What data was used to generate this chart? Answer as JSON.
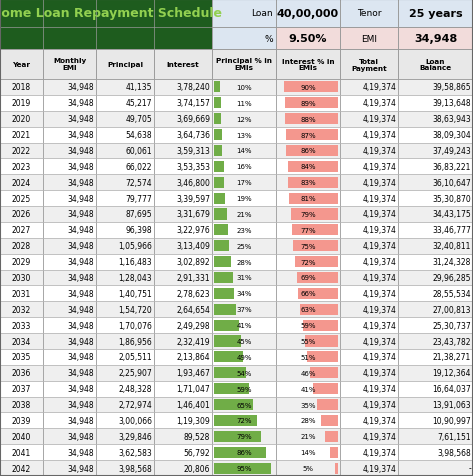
{
  "title": "Home Loan Repayment Schedule",
  "loan": "40,00,000",
  "tenor": "25 years",
  "rate": "9.50%",
  "emi_val": "34,948",
  "headers": [
    "Year",
    "Monthly\nEMI",
    "Principal",
    "Interest",
    "Principal % in\nEMIs",
    "Interest % in\nEMIs",
    "Total\nPayment",
    "Loan\nBalance"
  ],
  "rows": [
    [
      "2018",
      "34,948",
      "41,135",
      "3,78,240",
      10,
      90,
      "4,19,374",
      "39,58,865"
    ],
    [
      "2019",
      "34,948",
      "45,217",
      "3,74,157",
      11,
      89,
      "4,19,374",
      "39,13,648"
    ],
    [
      "2020",
      "34,948",
      "49,705",
      "3,69,669",
      12,
      88,
      "4,19,374",
      "38,63,943"
    ],
    [
      "2021",
      "34,948",
      "54,638",
      "3,64,736",
      13,
      87,
      "4,19,374",
      "38,09,304"
    ],
    [
      "2022",
      "34,948",
      "60,061",
      "3,59,313",
      14,
      86,
      "4,19,374",
      "37,49,243"
    ],
    [
      "2023",
      "34,948",
      "66,022",
      "3,53,353",
      16,
      84,
      "4,19,374",
      "36,83,221"
    ],
    [
      "2024",
      "34,948",
      "72,574",
      "3,46,800",
      17,
      83,
      "4,19,374",
      "36,10,647"
    ],
    [
      "2025",
      "34,948",
      "79,777",
      "3,39,597",
      19,
      81,
      "4,19,374",
      "35,30,870"
    ],
    [
      "2026",
      "34,948",
      "87,695",
      "3,31,679",
      21,
      79,
      "4,19,374",
      "34,43,175"
    ],
    [
      "2027",
      "34,948",
      "96,398",
      "3,22,976",
      23,
      77,
      "4,19,374",
      "33,46,777"
    ],
    [
      "2028",
      "34,948",
      "1,05,966",
      "3,13,409",
      25,
      75,
      "4,19,374",
      "32,40,811"
    ],
    [
      "2029",
      "34,948",
      "1,16,483",
      "3,02,892",
      28,
      72,
      "4,19,374",
      "31,24,328"
    ],
    [
      "2030",
      "34,948",
      "1,28,043",
      "2,91,331",
      31,
      69,
      "4,19,374",
      "29,96,285"
    ],
    [
      "2031",
      "34,948",
      "1,40,751",
      "2,78,623",
      34,
      66,
      "4,19,374",
      "28,55,534"
    ],
    [
      "2032",
      "34,948",
      "1,54,720",
      "2,64,654",
      37,
      63,
      "4,19,374",
      "27,00,813"
    ],
    [
      "2033",
      "34,948",
      "1,70,076",
      "2,49,298",
      41,
      59,
      "4,19,374",
      "25,30,737"
    ],
    [
      "2034",
      "34,948",
      "1,86,956",
      "2,32,419",
      45,
      55,
      "4,19,374",
      "23,43,782"
    ],
    [
      "2035",
      "34,948",
      "2,05,511",
      "2,13,864",
      49,
      51,
      "4,19,374",
      "21,38,271"
    ],
    [
      "2036",
      "34,948",
      "2,25,907",
      "1,93,467",
      54,
      46,
      "4,19,374",
      "19,12,364"
    ],
    [
      "2037",
      "34,948",
      "2,48,328",
      "1,71,047",
      59,
      41,
      "4,19,374",
      "16,64,037"
    ],
    [
      "2038",
      "34,948",
      "2,72,974",
      "1,46,401",
      65,
      35,
      "4,19,374",
      "13,91,063"
    ],
    [
      "2039",
      "34,948",
      "3,00,066",
      "1,19,309",
      72,
      28,
      "4,19,374",
      "10,90,997"
    ],
    [
      "2040",
      "34,948",
      "3,29,846",
      "89,528",
      79,
      21,
      "4,19,374",
      "7,61,151"
    ],
    [
      "2041",
      "34,948",
      "3,62,583",
      "56,792",
      86,
      14,
      "4,19,374",
      "3,98,568"
    ],
    [
      "2042",
      "34,948",
      "3,98,568",
      "20,806",
      95,
      5,
      "4,19,374",
      "-"
    ]
  ],
  "title_bg": "#1e5c1e",
  "title_fg": "#92d050",
  "info_bg_blue": "#dce6f1",
  "info_bg_pink": "#f2dcdb",
  "col_header_bg": "#e8e8e8",
  "row_bg_even": "#efefef",
  "row_bg_odd": "#ffffff",
  "green_bar_color": "#70ad47",
  "red_bar_color": "#f4978e",
  "grid_color": "#bbbbbb"
}
